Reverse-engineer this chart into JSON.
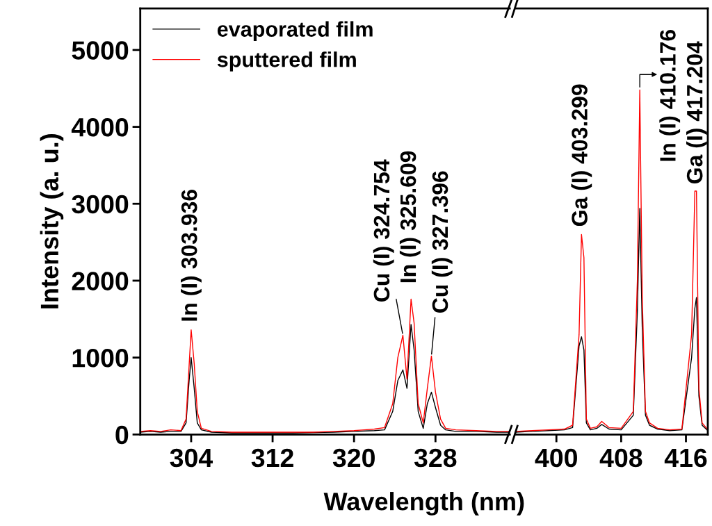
{
  "chart_data": [
    {
      "type": "line",
      "xlabel": "Wavelength (nm)",
      "ylabel": "Intensity (a. u.)",
      "xlim": [
        299,
        335.3
      ],
      "xticks": [
        304,
        312,
        320,
        328
      ],
      "ylim": [
        0,
        5540
      ],
      "yticks": [
        0,
        1000,
        2000,
        3000,
        4000,
        5000
      ],
      "legend": "top left",
      "grid": false,
      "tick_labels": "xy",
      "series": [
        {
          "name": "evaporated film",
          "color": "#000000",
          "x": [
            299,
            300,
            301,
            302,
            303,
            303.5,
            303.8,
            304.0,
            304.3,
            304.6,
            305,
            306,
            308,
            310,
            312,
            314,
            316,
            318,
            320,
            321,
            322,
            323,
            323.8,
            324.3,
            324.8,
            325.2,
            325.6,
            325.9,
            326.3,
            326.8,
            327.2,
            327.6,
            328.0,
            328.5,
            329,
            330,
            332,
            334,
            335.3
          ],
          "values": [
            30,
            40,
            30,
            40,
            40,
            150,
            700,
            1000,
            600,
            150,
            60,
            30,
            20,
            20,
            20,
            20,
            25,
            30,
            40,
            45,
            50,
            60,
            300,
            700,
            840,
            600,
            1430,
            1100,
            300,
            80,
            400,
            550,
            350,
            120,
            60,
            40,
            40,
            30,
            30
          ]
        },
        {
          "name": "sputtered film",
          "color": "#ff0000",
          "x": [
            299,
            300,
            301,
            302,
            303,
            303.5,
            303.8,
            304.0,
            304.3,
            304.6,
            305,
            306,
            308,
            310,
            312,
            314,
            316,
            318,
            320,
            321,
            322,
            323,
            323.8,
            324.3,
            324.8,
            325.2,
            325.6,
            325.9,
            326.3,
            326.8,
            327.2,
            327.6,
            328.0,
            328.5,
            329,
            330,
            332,
            334,
            335.3
          ],
          "values": [
            40,
            50,
            40,
            60,
            50,
            200,
            900,
            1360,
            920,
            300,
            80,
            40,
            30,
            30,
            30,
            30,
            30,
            40,
            50,
            60,
            70,
            90,
            400,
            1000,
            1290,
            720,
            1760,
            1450,
            400,
            150,
            600,
            1020,
            550,
            200,
            80,
            60,
            50,
            40,
            40
          ]
        }
      ],
      "annotations": [
        {
          "text": "In (I) 303.936",
          "x": 304.0,
          "y": 1360
        },
        {
          "text": "Cu (I) 324.754",
          "x": 324.8,
          "y": 1290
        },
        {
          "text": "In (I) 325.609",
          "x": 325.6,
          "y": 1760
        },
        {
          "text": "Cu (I) 327.396",
          "x": 327.6,
          "y": 1020
        }
      ]
    },
    {
      "type": "line",
      "xlim": [
        395,
        418.7
      ],
      "xticks": [
        400,
        408,
        416
      ],
      "ylim": [
        0,
        5540
      ],
      "tick_labels": "x",
      "grid": false,
      "series": [
        {
          "color": "#000000",
          "x": [
            395,
            397,
            399,
            401,
            402,
            402.8,
            403.1,
            403.4,
            403.7,
            404.2,
            405,
            405.6,
            406.5,
            408,
            409.5,
            410,
            410.3,
            410.6,
            411,
            411.5,
            412.5,
            414,
            415.5,
            416.7,
            417.1,
            417.3,
            417.6,
            418,
            418.7
          ],
          "values": [
            30,
            40,
            50,
            60,
            90,
            1150,
            1270,
            1100,
            150,
            60,
            80,
            130,
            70,
            60,
            250,
            1600,
            2940,
            1400,
            250,
            120,
            70,
            50,
            60,
            1000,
            1640,
            1780,
            500,
            120,
            50
          ]
        },
        {
          "color": "#ff0000",
          "x": [
            395,
            397,
            399,
            401,
            402,
            402.8,
            403.1,
            403.4,
            403.7,
            404.2,
            405,
            405.6,
            406.5,
            408,
            409.5,
            410,
            410.3,
            410.6,
            411,
            411.5,
            412.5,
            414,
            415.5,
            416.7,
            417.1,
            417.3,
            417.6,
            418,
            418.7
          ],
          "values": [
            40,
            50,
            60,
            70,
            120,
            1300,
            2600,
            2300,
            200,
            80,
            100,
            170,
            90,
            80,
            300,
            2000,
            4480,
            1800,
            300,
            150,
            80,
            60,
            70,
            1300,
            3165,
            3165,
            600,
            150,
            60
          ]
        }
      ],
      "annotations": [
        {
          "text": "Ga (I) 403.299",
          "x": 403.1,
          "y": 2600
        },
        {
          "text": "In (I) 410.176",
          "x": 410.3,
          "y": 4480
        },
        {
          "text": "Ga (I) 417.204",
          "x": 417.2,
          "y": 3165
        }
      ]
    }
  ]
}
